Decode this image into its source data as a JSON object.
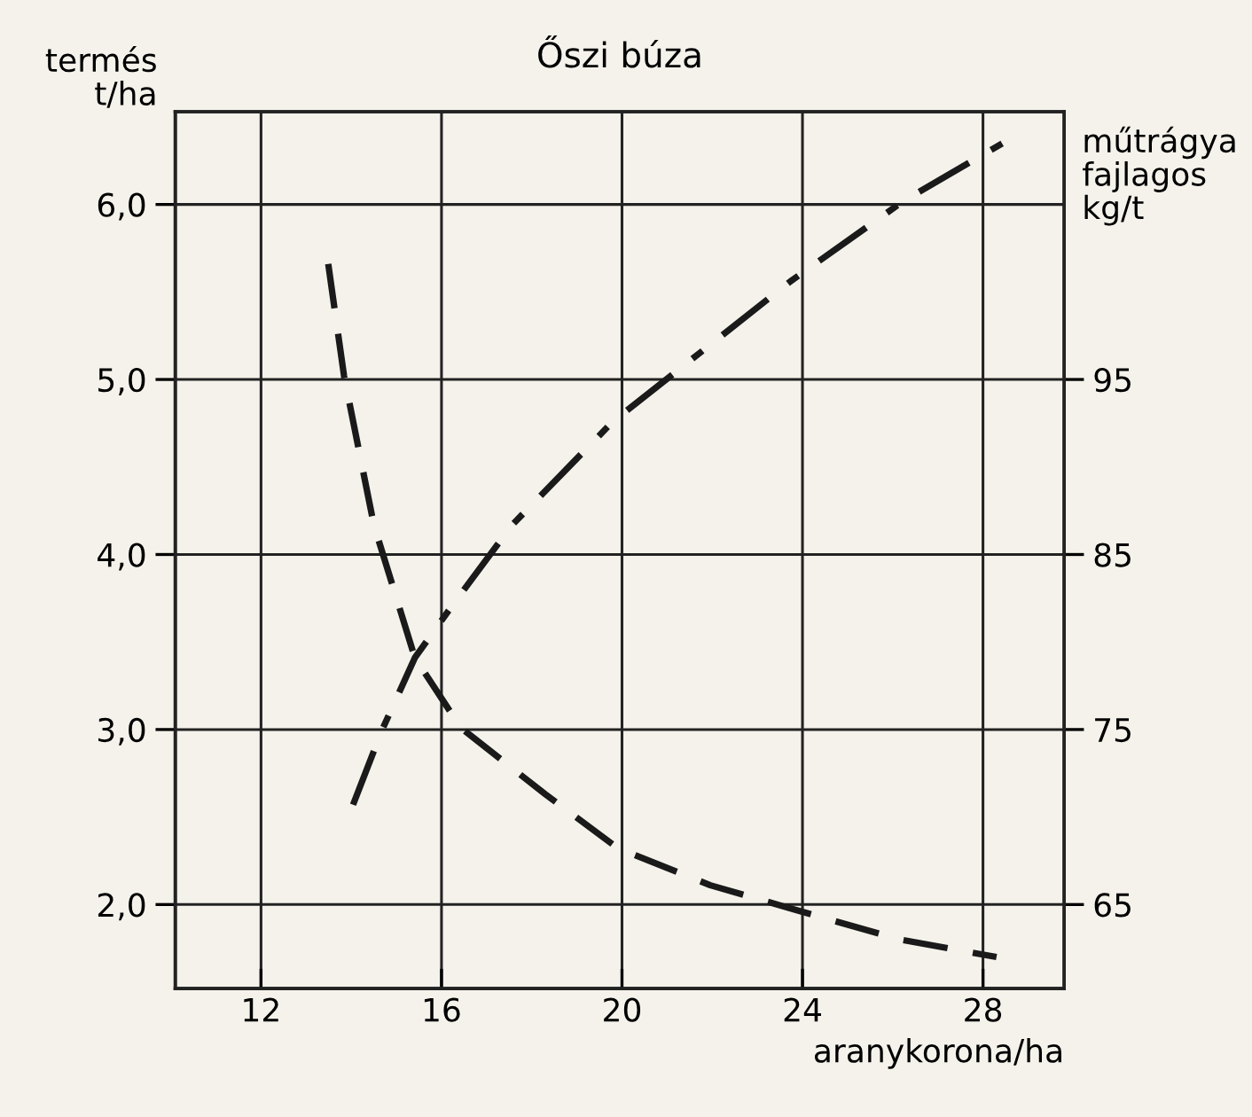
{
  "chart_data": {
    "type": "line",
    "title": "Őszi búza",
    "xlabel": "aranykorona/ha",
    "ylabel": "termés\nt/ha",
    "y2label": "műtrágya\nfajlagos\nkg/t",
    "xlim": [
      10.1,
      29.8
    ],
    "xticks": [
      12,
      16,
      20,
      24,
      28
    ],
    "ylim": [
      1.52,
      6.53
    ],
    "yticks": [
      {
        "value": 2,
        "label": "2,0"
      },
      {
        "value": 3,
        "label": "3,0"
      },
      {
        "value": 4,
        "label": "4,0"
      },
      {
        "value": 5,
        "label": "5,0"
      },
      {
        "value": 6,
        "label": "6,0"
      }
    ],
    "y2lim": [
      60.2,
      110.3
    ],
    "y2ticks": [
      65,
      75,
      85,
      95
    ],
    "grid": true,
    "marker": "none",
    "series": [
      {
        "color": "#1a1a1a",
        "line_style": "dashdot",
        "x": [
          14.04,
          14.67,
          15.41,
          16.27,
          17.57,
          19.8,
          23.73,
          26.24,
          28.5
        ],
        "values": [
          2.57,
          2.99,
          3.41,
          3.72,
          4.17,
          4.76,
          5.56,
          6.02,
          6.36
        ]
      },
      {
        "color": "#1a1a1a",
        "line_style": "dashed",
        "axis": "y2",
        "x": [
          13.49,
          13.84,
          14.5,
          15.41,
          16.43,
          18.3,
          19.92,
          21.96,
          23.84,
          26.16,
          28.3
        ],
        "values": [
          101.6,
          95.2,
          86.7,
          79.1,
          75.1,
          71.3,
          68.2,
          66.1,
          64.7,
          63.0,
          62.0
        ]
      }
    ]
  }
}
